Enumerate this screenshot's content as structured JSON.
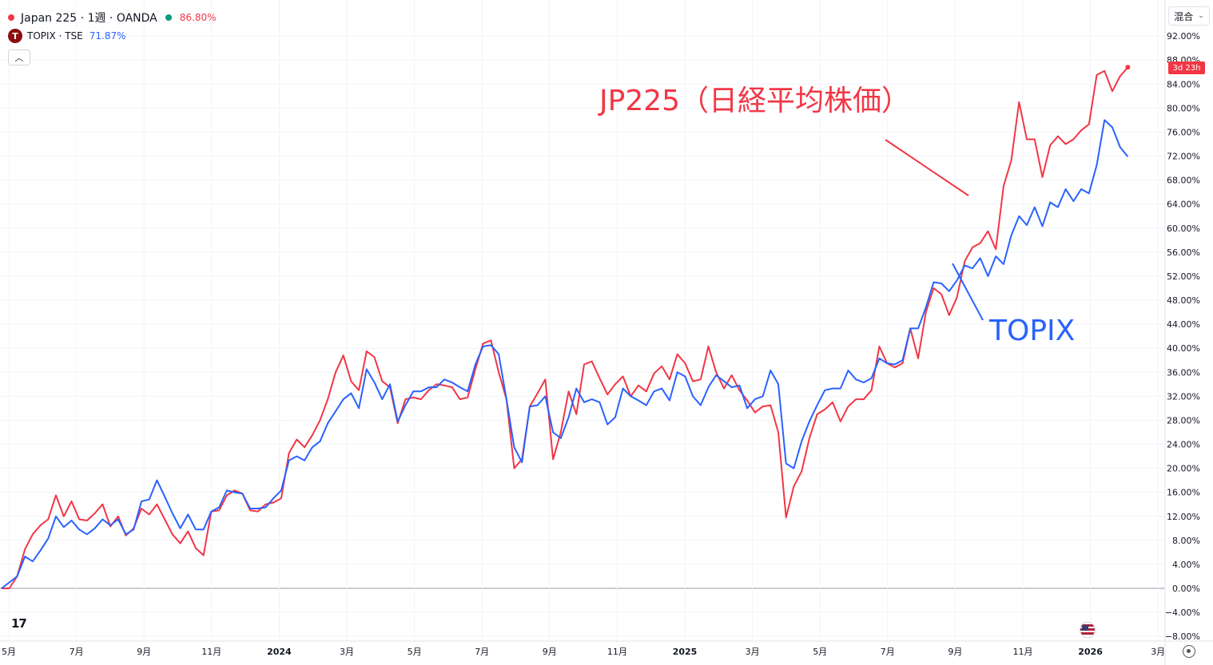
{
  "header": {
    "symbol_label": "Japan 225 · 1週 · OANDA",
    "symbol_value": "86.80%",
    "compare_badge": "T",
    "compare_label": "TOPIX · TSE",
    "compare_value": "71.87%",
    "collapse_icon": "chevron-up-icon"
  },
  "toolbar": {
    "mode_label": "混合",
    "mode_icon": "chevron-down-icon"
  },
  "price_tag": "3d 23h",
  "colors": {
    "jp225": "#f23645",
    "topix": "#2962ff",
    "grid": "#f0f3fa",
    "axis_text": "#131722"
  },
  "chart_data": {
    "type": "line",
    "x_unit": "week",
    "x_range": [
      "2023-05",
      "2026-03"
    ],
    "y_unit": "%",
    "ylim": [
      -8,
      94
    ],
    "grid": true,
    "y_ticks": [
      "92.00%",
      "88.00%",
      "84.00%",
      "80.00%",
      "76.00%",
      "72.00%",
      "68.00%",
      "64.00%",
      "60.00%",
      "56.00%",
      "52.00%",
      "48.00%",
      "44.00%",
      "40.00%",
      "36.00%",
      "32.00%",
      "28.00%",
      "24.00%",
      "20.00%",
      "16.00%",
      "12.00%",
      "8.00%",
      "4.00%",
      "0.00%",
      "−4.00%",
      "−8.00%"
    ],
    "x_ticks": [
      {
        "label": "5月",
        "x": "2023-05"
      },
      {
        "label": "7月",
        "x": "2023-07"
      },
      {
        "label": "9月",
        "x": "2023-09"
      },
      {
        "label": "11月",
        "x": "2023-11"
      },
      {
        "label": "2024",
        "x": "2024-01"
      },
      {
        "label": "3月",
        "x": "2024-03"
      },
      {
        "label": "5月",
        "x": "2024-05"
      },
      {
        "label": "7月",
        "x": "2024-07"
      },
      {
        "label": "9月",
        "x": "2024-09"
      },
      {
        "label": "11月",
        "x": "2024-11"
      },
      {
        "label": "2025",
        "x": "2025-01"
      },
      {
        "label": "3月",
        "x": "2025-03"
      },
      {
        "label": "5月",
        "x": "2025-05"
      },
      {
        "label": "7月",
        "x": "2025-07"
      },
      {
        "label": "9月",
        "x": "2025-09"
      },
      {
        "label": "11月",
        "x": "2025-11"
      },
      {
        "label": "2026",
        "x": "2026-01"
      },
      {
        "label": "3月",
        "x": "2026-03"
      }
    ],
    "series": [
      {
        "name": "Japan 225",
        "color": "#f23645",
        "values": [
          0,
          0,
          2,
          6.5,
          9,
          10.5,
          11.5,
          15.5,
          12,
          14.5,
          11.5,
          11.3,
          12.5,
          14,
          10.3,
          12,
          8.8,
          10,
          13.3,
          12.3,
          14,
          11.5,
          9,
          7.5,
          9.5,
          6.7,
          5.5,
          12.8,
          13,
          15.5,
          16.3,
          15.8,
          13,
          12.8,
          14,
          14.3,
          15,
          22.5,
          24.8,
          23.5,
          25.5,
          28,
          31.5,
          36,
          38.8,
          34.5,
          33,
          39.5,
          38.5,
          34.5,
          33.5,
          27.5,
          31.5,
          31.8,
          31.5,
          33,
          34,
          33.8,
          33.5,
          31.5,
          31.8,
          36.5,
          40.8,
          41.3,
          36,
          31.5,
          20,
          21.5,
          30.3,
          32.5,
          34.8,
          21.5,
          26,
          32.8,
          29,
          37.3,
          37.8,
          35,
          32.3,
          34,
          35.3,
          32,
          33.8,
          32.8,
          35.8,
          37,
          34.8,
          39,
          37.5,
          34.5,
          34.8,
          40.3,
          36,
          33.3,
          35.5,
          33,
          31.3,
          29.3,
          30.3,
          30.5,
          26,
          11.8,
          17,
          19.5,
          25,
          29,
          29.8,
          31,
          27.8,
          30.3,
          31.5,
          31.5,
          33,
          40.3,
          37.5,
          36.8,
          37.5,
          43.3,
          38.3,
          46,
          50,
          49,
          45.5,
          48.5,
          54.5,
          56.8,
          57.5,
          59.5,
          56.5,
          67,
          71.3,
          81,
          74.8,
          74.8,
          68.5,
          73.8,
          75.3,
          74,
          74.8,
          76.3,
          77.3,
          85.5,
          86.2,
          82.8,
          85.3,
          86.8
        ]
      },
      {
        "name": "TOPIX",
        "color": "#2962ff",
        "values": [
          0,
          1,
          2,
          5.3,
          4.5,
          6.3,
          8.3,
          12,
          10.2,
          11.3,
          9.8,
          9,
          10,
          11.5,
          10.5,
          11.5,
          9,
          9.8,
          14.5,
          14.8,
          18,
          15.3,
          12.5,
          10,
          12.3,
          9.8,
          9.8,
          12.8,
          13.5,
          16.3,
          16,
          15.8,
          13.3,
          13.3,
          13.5,
          15,
          16.3,
          21.3,
          22,
          21.3,
          23.5,
          24.5,
          27.5,
          29.5,
          31.5,
          32.5,
          30,
          36.5,
          34.3,
          31.5,
          34,
          27.8,
          30.5,
          32.8,
          32.8,
          33.5,
          33.5,
          34.8,
          34.3,
          33.5,
          32.8,
          37.3,
          40.3,
          40.5,
          39,
          31.5,
          23.5,
          21,
          30.3,
          30.5,
          32,
          26,
          25,
          28.5,
          33.3,
          31,
          31.5,
          31,
          27.3,
          28.5,
          33.3,
          32,
          31.3,
          30.5,
          32.8,
          33.3,
          31.3,
          36,
          35.3,
          32,
          30.5,
          33.5,
          35.5,
          34.5,
          33.5,
          33.8,
          30,
          31.5,
          32,
          36.3,
          34,
          20.8,
          20,
          24.5,
          27.8,
          30.5,
          33,
          33.3,
          33.3,
          36.3,
          34.8,
          34.3,
          35,
          38.3,
          37.5,
          37.3,
          38,
          43.3,
          43.3,
          46.8,
          51,
          50.8,
          49.5,
          51.3,
          53.8,
          53.3,
          55,
          52,
          55.3,
          54,
          58.8,
          62,
          60.5,
          63.5,
          60.3,
          64.3,
          63.5,
          66.5,
          64.5,
          66.5,
          65.8,
          70.5,
          78,
          76.8,
          73.5,
          71.9
        ]
      }
    ],
    "annotations": [
      {
        "text": "JP225（日経平均株価）",
        "color": "#f23645"
      },
      {
        "text": "TOPIX",
        "color": "#2962ff"
      }
    ]
  }
}
